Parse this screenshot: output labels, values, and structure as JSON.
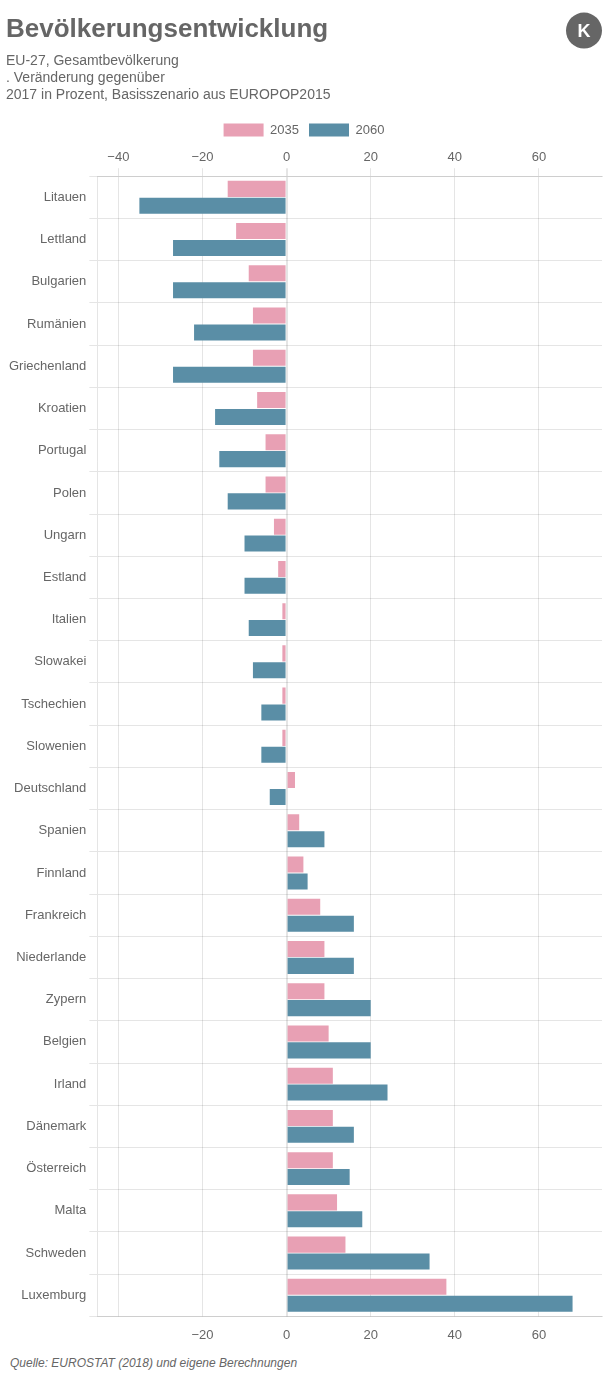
{
  "chart_data": {
    "type": "bar",
    "orientation": "horizontal",
    "title": "Bevölkerungsentwicklung",
    "subtitle": [
      "EU-27, Gesamtbevölkerung",
      ". Veränderung gegenüber",
      "2017 in Prozent, Basisszenario aus EUROPOP2015"
    ],
    "source": "Quelle: EUROSTAT (2018) und eigene Berechnungen",
    "annotations": [
      "K"
    ],
    "categories": [
      "Litauen",
      "Lettland",
      "Bulgarien",
      "Rumänien",
      "Griechenland",
      "Kroatien",
      "Portugal",
      "Polen",
      "Ungarn",
      "Estland",
      "Italien",
      "Slowakei",
      "Tschechien",
      "Slowenien",
      "Deutschland",
      "Spanien",
      "Finnland",
      "Frankreich",
      "Niederlande",
      "Zypern",
      "Belgien",
      "Irland",
      "Dänemark",
      "Österreich",
      "Malta",
      "Schweden",
      "Luxemburg"
    ],
    "series": [
      {
        "name": "2035",
        "color": "#e8a0b4",
        "values": [
          -14,
          -12,
          -9,
          -8,
          -8,
          -7,
          -5,
          -5,
          -3,
          -2,
          -1,
          -1,
          -1,
          -1,
          2,
          3,
          4,
          8,
          9,
          9,
          10,
          11,
          11,
          11,
          12,
          14,
          38
        ]
      },
      {
        "name": "2060",
        "color": "#5a8ea6",
        "values": [
          -35,
          -27,
          -27,
          -22,
          -27,
          -17,
          -16,
          -14,
          -10,
          -10,
          -9,
          -8,
          -6,
          -6,
          -4,
          9,
          5,
          16,
          16,
          20,
          20,
          24,
          16,
          15,
          18,
          34,
          68
        ]
      }
    ],
    "xlim": [
      -45,
      75
    ],
    "xticks": [
      {
        "value": -40,
        "label": "−40"
      },
      {
        "value": -20,
        "label": "−20"
      },
      0,
      20,
      40,
      60
    ],
    "x2lim": [
      -45,
      75
    ],
    "x2ticks": [
      {
        "value": -20,
        "label": "−20"
      },
      0,
      20,
      40,
      60
    ],
    "grid": true,
    "legend": "top"
  }
}
